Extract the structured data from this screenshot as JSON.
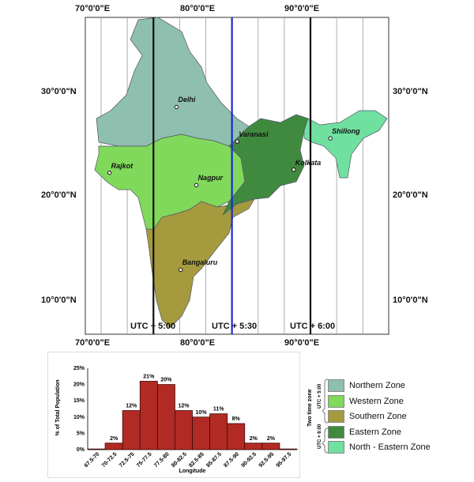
{
  "map": {
    "top_longitude_labels": [
      "70°0'0\"E",
      "80°0'0\"E",
      "90°0'0\"E"
    ],
    "bottom_longitude_labels": [
      "70°0'0\"E",
      "80°0'0\"E",
      "90°0'0\"E"
    ],
    "latitude_labels": [
      "30°0'0\"N",
      "20°0'0\"N",
      "10°0'0\"N"
    ],
    "timezone_labels": [
      "UTC + 5:00",
      "UTC + 5:30",
      "UTC + 6:00"
    ],
    "timezone_line_colors": [
      "#111111",
      "#1a2ad0",
      "#111111"
    ],
    "cities": [
      {
        "name": "Delhi",
        "lon": 77.2,
        "lat": 28.6
      },
      {
        "name": "Varanasi",
        "lon": 83.0,
        "lat": 25.3
      },
      {
        "name": "Kolkata",
        "lon": 88.4,
        "lat": 22.6
      },
      {
        "name": "Shillong",
        "lon": 91.9,
        "lat": 25.6
      },
      {
        "name": "Rajkot",
        "lon": 70.8,
        "lat": 22.3
      },
      {
        "name": "Nagpur",
        "lon": 79.1,
        "lat": 21.1
      },
      {
        "name": "Bangaluru",
        "lon": 77.6,
        "lat": 13.0
      }
    ],
    "zone_colors": {
      "northern": "#8fbfae",
      "western": "#80d95a",
      "southern": "#a59b3e",
      "eastern": "#3f8a3f",
      "north_eastern": "#70e0a0"
    }
  },
  "legend": {
    "group_title": "Two time zone",
    "group_labels": [
      "UTC + 5:00",
      "UTC + 6:00"
    ],
    "items": [
      {
        "label": "Northern Zone",
        "color": "#8fbfae"
      },
      {
        "label": "Western Zone",
        "color": "#80d95a"
      },
      {
        "label": "Southern Zone",
        "color": "#a59b3e"
      },
      {
        "label": "Eastern Zone",
        "color": "#3f8a3f"
      },
      {
        "label": "North - Eastern Zone",
        "color": "#70e0a0"
      }
    ]
  },
  "chart_data": {
    "type": "bar",
    "title": "",
    "xlabel": "Longitude",
    "ylabel": "% of Total Population",
    "categories": [
      "67.5-70",
      "70-72.5",
      "72.5-75",
      "75-77.5",
      "77.5-80",
      "80-82.5",
      "82.5-85",
      "85-87.5",
      "87.5-90",
      "90-92.5",
      "92.5-95",
      "95-97.5"
    ],
    "values": [
      0,
      2,
      12,
      21,
      20,
      12,
      10,
      11,
      8,
      2,
      2,
      0
    ],
    "data_labels": [
      "",
      "2%",
      "12%",
      "21%",
      "20%",
      "12%",
      "10%",
      "11%",
      "8%",
      "2%",
      "2%",
      ""
    ],
    "yticks": [
      "0%",
      "5%",
      "10%",
      "15%",
      "20%",
      "25%"
    ],
    "ylim": [
      0,
      25
    ],
    "bar_color": "#b22a24",
    "grid": false
  }
}
